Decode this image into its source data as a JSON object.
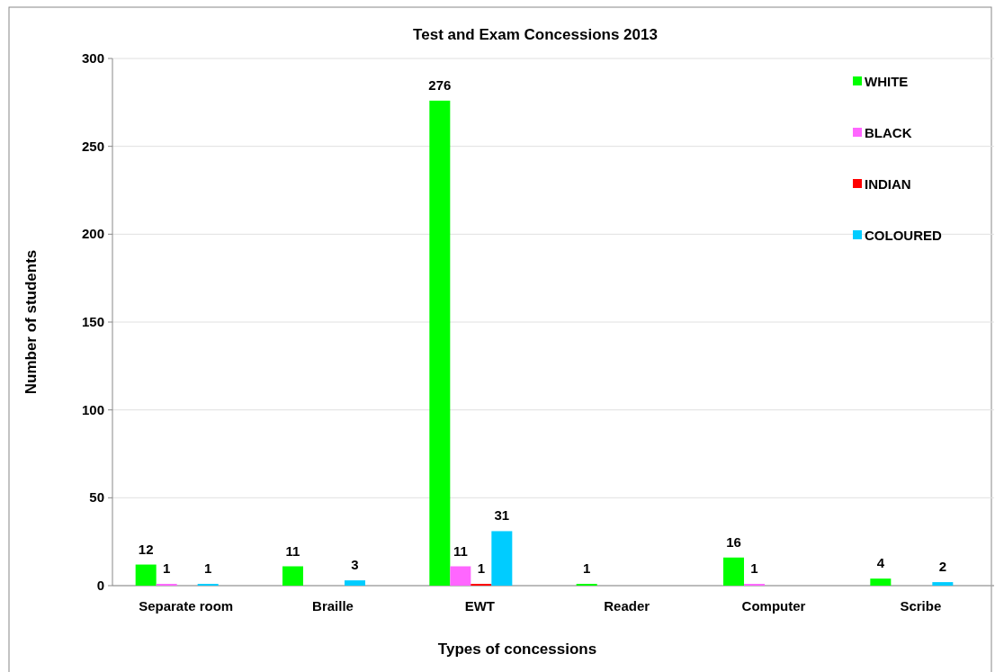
{
  "chart_data": {
    "type": "bar",
    "title": "Test and Exam Concessions 2013",
    "xlabel": "Types of concessions",
    "ylabel": "Number of students",
    "categories": [
      "Separate room",
      "Braille",
      "EWT",
      "Reader",
      "Computer",
      "Scribe"
    ],
    "series": [
      {
        "name": "WHITE",
        "color": "#00ff00",
        "values": [
          12,
          11,
          276,
          1,
          16,
          4
        ]
      },
      {
        "name": "BLACK",
        "color": "#ff66ff",
        "values": [
          1,
          null,
          11,
          null,
          1,
          null
        ]
      },
      {
        "name": "INDIAN",
        "color": "#ff0000",
        "values": [
          null,
          null,
          1,
          null,
          null,
          null
        ]
      },
      {
        "name": "COLOURED",
        "color": "#00ccff",
        "values": [
          1,
          3,
          31,
          null,
          null,
          2
        ]
      }
    ],
    "ylim": [
      0,
      300
    ],
    "yticks": [
      0,
      50,
      100,
      150,
      200,
      250,
      300
    ],
    "grid": "y",
    "legend": "top right",
    "data_labels": true
  }
}
